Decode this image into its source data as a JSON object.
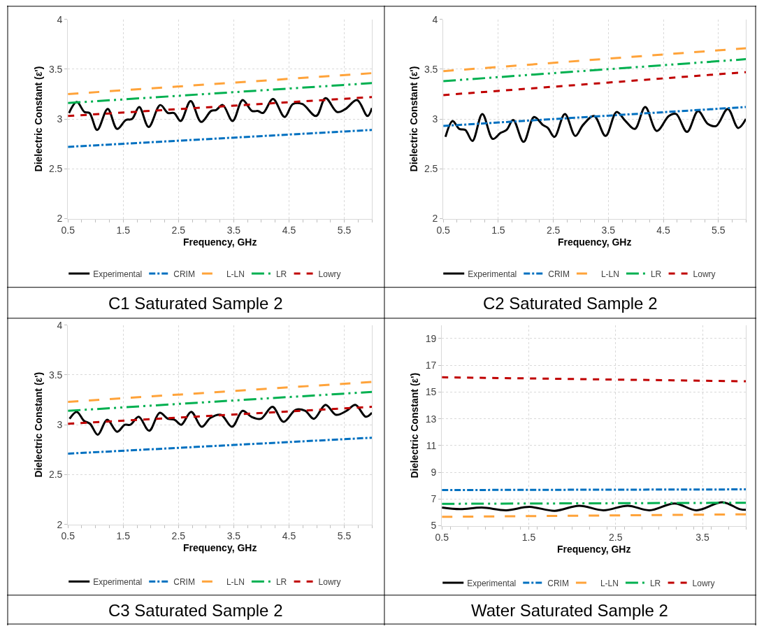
{
  "chart_data": [
    {
      "type": "line",
      "title": "C1 Saturated Sample 2",
      "xlabel": "Frequency, GHz",
      "ylabel": "Dielectric Constant (ε')",
      "xlim": [
        0.5,
        6
      ],
      "xticks": [
        0.5,
        1.5,
        2.5,
        3.5,
        4.5,
        5.5
      ],
      "ylim": [
        2,
        4
      ],
      "yticks": [
        2,
        2.5,
        3,
        3.5,
        4
      ],
      "grid": true,
      "legend": "bottom",
      "marker": "none",
      "series": [
        {
          "name": "Experimental",
          "color": "#000000",
          "line_style": "solid",
          "x": [
            0.52,
            0.66,
            0.8,
            0.89,
            1.03,
            1.22,
            1.39,
            1.55,
            1.66,
            1.79,
            1.96,
            2.17,
            2.31,
            2.42,
            2.54,
            2.72,
            2.91,
            3.09,
            3.18,
            3.3,
            3.48,
            3.66,
            3.83,
            3.94,
            4.03,
            4.21,
            4.42,
            4.57,
            4.74,
            4.99,
            5.16,
            5.37,
            5.52,
            5.73,
            5.92,
            6.0
          ],
          "values": [
            3.06,
            3.17,
            3.07,
            3.06,
            2.89,
            3.1,
            2.9,
            2.99,
            3.0,
            3.12,
            2.92,
            3.14,
            3.06,
            3.06,
            2.98,
            3.18,
            2.97,
            3.08,
            3.09,
            3.14,
            2.98,
            3.19,
            3.08,
            3.08,
            3.06,
            3.2,
            3.02,
            3.15,
            3.15,
            3.03,
            3.21,
            3.07,
            3.1,
            3.19,
            3.03,
            3.11
          ]
        },
        {
          "name": "CRIM",
          "color": "#0070c0",
          "line_style": "dashdot",
          "x": [
            0.5,
            6
          ],
          "values": [
            2.72,
            2.89
          ]
        },
        {
          "name": "L-LN",
          "color": "#ffa33a",
          "line_style": "longdash",
          "x": [
            0.5,
            6
          ],
          "values": [
            3.25,
            3.46
          ]
        },
        {
          "name": "LR",
          "color": "#00b050",
          "line_style": "longdashdotdot",
          "x": [
            0.5,
            6
          ],
          "values": [
            3.16,
            3.36
          ]
        },
        {
          "name": "Lowry",
          "color": "#c00000",
          "line_style": "dash",
          "x": [
            0.5,
            6
          ],
          "values": [
            3.03,
            3.22
          ]
        }
      ]
    },
    {
      "type": "line",
      "title": "C2 Saturated Sample 2",
      "xlabel": "Frequency, GHz",
      "ylabel": "Dielectric Constant (ε')",
      "xlim": [
        0.5,
        6
      ],
      "xticks": [
        0.5,
        1.5,
        2.5,
        3.5,
        4.5,
        5.5
      ],
      "ylim": [
        2,
        4
      ],
      "yticks": [
        2,
        2.5,
        3,
        3.5,
        4
      ],
      "grid": true,
      "legend": "bottom",
      "marker": "none",
      "series": [
        {
          "name": "Experimental",
          "color": "#000000",
          "line_style": "solid",
          "x": [
            0.54,
            0.67,
            0.79,
            0.9,
            1.03,
            1.21,
            1.4,
            1.54,
            1.65,
            1.77,
            1.96,
            2.15,
            2.31,
            2.4,
            2.52,
            2.71,
            2.9,
            3.04,
            3.24,
            3.45,
            3.65,
            3.81,
            3.98,
            4.17,
            4.38,
            4.6,
            4.73,
            4.93,
            5.13,
            5.31,
            5.46,
            5.67,
            5.86,
            6.0
          ],
          "values": [
            2.82,
            2.98,
            2.9,
            2.89,
            2.78,
            3.05,
            2.8,
            2.86,
            2.89,
            2.99,
            2.77,
            3.02,
            2.94,
            2.91,
            2.82,
            3.05,
            2.83,
            2.94,
            3.03,
            2.83,
            3.07,
            2.98,
            2.9,
            3.12,
            2.88,
            3.03,
            3.05,
            2.87,
            3.08,
            2.95,
            2.93,
            3.1,
            2.91,
            3.0
          ]
        },
        {
          "name": "CRIM",
          "color": "#0070c0",
          "line_style": "dashdot",
          "x": [
            0.5,
            6
          ],
          "values": [
            2.93,
            3.12
          ]
        },
        {
          "name": "L-LN",
          "color": "#ffa33a",
          "line_style": "longdash",
          "x": [
            0.5,
            6
          ],
          "values": [
            3.48,
            3.71
          ]
        },
        {
          "name": "LR",
          "color": "#00b050",
          "line_style": "longdashdotdot",
          "x": [
            0.5,
            6
          ],
          "values": [
            3.38,
            3.6
          ]
        },
        {
          "name": "Lowry",
          "color": "#c00000",
          "line_style": "dash",
          "x": [
            0.5,
            6
          ],
          "values": [
            3.24,
            3.47
          ]
        }
      ]
    },
    {
      "type": "line",
      "title": "C3 Saturated Sample 2",
      "xlabel": "Frequency, GHz",
      "ylabel": "Dielectric Constant (ε')",
      "xlim": [
        0.5,
        6
      ],
      "xticks": [
        0.5,
        1.5,
        2.5,
        3.5,
        4.5,
        5.5
      ],
      "ylim": [
        2,
        4
      ],
      "yticks": [
        2,
        2.5,
        3,
        3.5,
        4
      ],
      "grid": true,
      "legend": "bottom",
      "marker": "none",
      "series": [
        {
          "name": "Experimental",
          "color": "#000000",
          "line_style": "solid",
          "x": [
            0.53,
            0.66,
            0.79,
            0.9,
            1.04,
            1.21,
            1.39,
            1.53,
            1.63,
            1.78,
            1.97,
            2.16,
            2.31,
            2.43,
            2.55,
            2.73,
            2.92,
            3.08,
            3.27,
            3.47,
            3.66,
            3.82,
            3.99,
            4.2,
            4.4,
            4.62,
            4.79,
            4.95,
            5.16,
            5.35,
            5.54,
            5.7,
            5.89,
            6.0
          ],
          "values": [
            3.06,
            3.13,
            3.04,
            3.01,
            2.9,
            3.05,
            2.93,
            3.0,
            3.0,
            3.08,
            2.94,
            3.12,
            3.06,
            3.05,
            3.0,
            3.13,
            2.98,
            3.07,
            3.1,
            2.98,
            3.14,
            3.08,
            3.06,
            3.18,
            3.03,
            3.15,
            3.14,
            3.06,
            3.2,
            3.1,
            3.14,
            3.2,
            3.08,
            3.12
          ]
        },
        {
          "name": "CRIM",
          "color": "#0070c0",
          "line_style": "dashdot",
          "x": [
            0.5,
            6
          ],
          "values": [
            2.71,
            2.87
          ]
        },
        {
          "name": "L-LN",
          "color": "#ffa33a",
          "line_style": "longdash",
          "x": [
            0.5,
            6
          ],
          "values": [
            3.23,
            3.43
          ]
        },
        {
          "name": "LR",
          "color": "#00b050",
          "line_style": "longdashdotdot",
          "x": [
            0.5,
            6
          ],
          "values": [
            3.14,
            3.33
          ]
        },
        {
          "name": "Lowry",
          "color": "#c00000",
          "line_style": "dash",
          "x": [
            0.5,
            6
          ],
          "values": [
            3.01,
            3.18
          ]
        }
      ]
    },
    {
      "type": "line",
      "title": "Water Saturated Sample 2",
      "xlabel": "Frequency, GHz",
      "ylabel": "Dielectric Constant (ε')",
      "xlim": [
        0.5,
        4
      ],
      "xticks": [
        0.5,
        1.5,
        2.5,
        3.5
      ],
      "ylim": [
        5,
        20
      ],
      "yticks": [
        5,
        7,
        9,
        11,
        13,
        15,
        17,
        19
      ],
      "grid": true,
      "legend": "bottom",
      "marker": "none",
      "series": [
        {
          "name": "Experimental",
          "color": "#000000",
          "line_style": "solid",
          "x": [
            0.5,
            0.71,
            0.96,
            1.24,
            1.51,
            1.8,
            2.08,
            2.36,
            2.64,
            2.89,
            3.18,
            3.43,
            3.73,
            3.93,
            4.0
          ],
          "values": [
            6.36,
            6.24,
            6.36,
            6.16,
            6.41,
            6.12,
            6.5,
            6.16,
            6.5,
            6.16,
            6.67,
            6.16,
            6.76,
            6.24,
            6.19
          ]
        },
        {
          "name": "CRIM",
          "color": "#0070c0",
          "line_style": "dashdot",
          "x": [
            0.5,
            4
          ],
          "values": [
            7.67,
            7.72
          ]
        },
        {
          "name": "L-LN",
          "color": "#ffa33a",
          "line_style": "longdash",
          "x": [
            0.5,
            4
          ],
          "values": [
            5.67,
            5.86
          ]
        },
        {
          "name": "LR",
          "color": "#00b050",
          "line_style": "longdashdotdot",
          "x": [
            0.5,
            4
          ],
          "values": [
            6.64,
            6.72
          ]
        },
        {
          "name": "Lowry",
          "color": "#c00000",
          "line_style": "dash",
          "x": [
            0.5,
            4
          ],
          "values": [
            16.1,
            15.8
          ]
        }
      ]
    }
  ]
}
